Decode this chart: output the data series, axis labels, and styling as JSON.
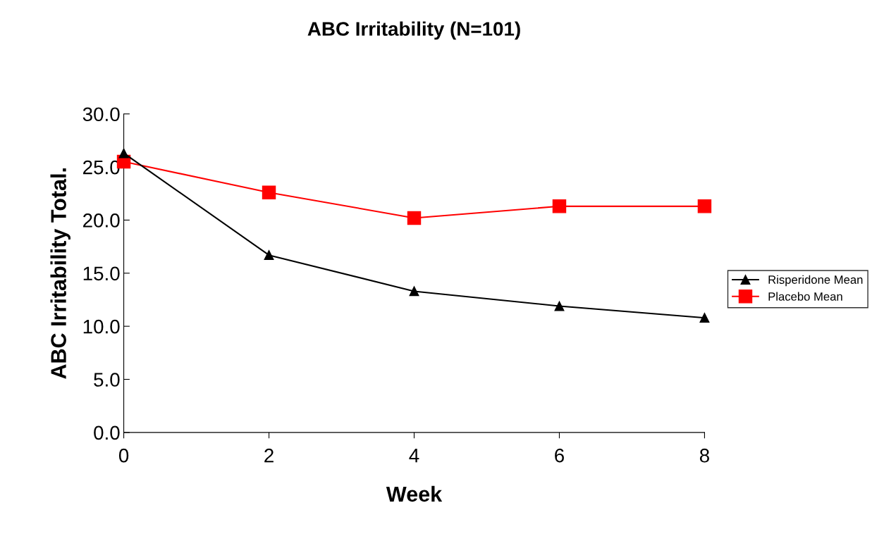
{
  "chart_data": {
    "type": "line",
    "title": "ABC Irritability (N=101)",
    "xlabel": "Week",
    "ylabel": "ABC Irritability Total.",
    "x": [
      0,
      2,
      4,
      6,
      8
    ],
    "series": [
      {
        "name": "Risperidone Mean",
        "color": "#000000",
        "marker": "triangle",
        "values": [
          26.3,
          16.7,
          13.3,
          11.9,
          10.8
        ]
      },
      {
        "name": "Placebo Mean",
        "color": "#ff0000",
        "marker": "square",
        "values": [
          25.5,
          22.6,
          20.2,
          21.3,
          21.3
        ]
      }
    ],
    "xlim": [
      0,
      8
    ],
    "xticks": [
      0,
      2,
      4,
      6,
      8
    ],
    "ylim": [
      0,
      30
    ],
    "yticks": [
      {
        "value": 0,
        "label": "0.0"
      },
      {
        "value": 5,
        "label": "5.0"
      },
      {
        "value": 10,
        "label": "10.0"
      },
      {
        "value": 15,
        "label": "15.0"
      },
      {
        "value": 20,
        "label": "20.0"
      },
      {
        "value": 25,
        "label": "25.0"
      },
      {
        "value": 30,
        "label": "30.0"
      }
    ],
    "grid": false,
    "legend": "right",
    "line_style": "solid"
  }
}
